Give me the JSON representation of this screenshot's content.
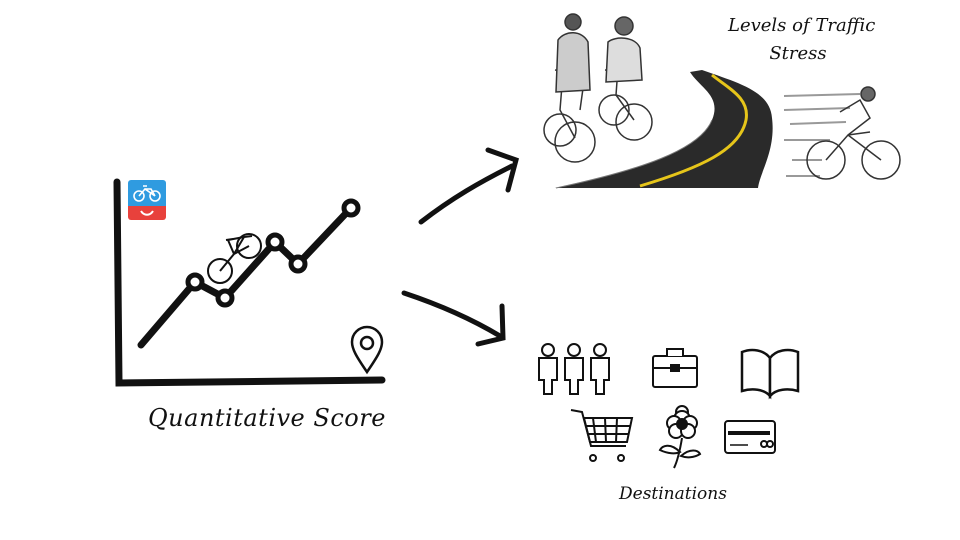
{
  "labels": {
    "quantitative_score": "Quantitative Score",
    "destinations": "Destinations",
    "levels_of_traffic_stress_line1": "Levels of Traffic",
    "levels_of_traffic_stress_line2": "Stress"
  },
  "colors": {
    "ink": "#111111",
    "app_badge_blue": "#2f9be0",
    "app_badge_red": "#e8413c",
    "road_asphalt": "#2a2a2a",
    "road_center_line": "#e6c51a"
  },
  "icons": {
    "app_badge": "bike-app-icon",
    "location": "map-pin-icon",
    "chart_bike": "bicycle-icon",
    "destinations": [
      "people-icon",
      "briefcase-icon",
      "book-icon",
      "shopping-cart-icon",
      "flower-icon",
      "credit-card-icon"
    ]
  }
}
